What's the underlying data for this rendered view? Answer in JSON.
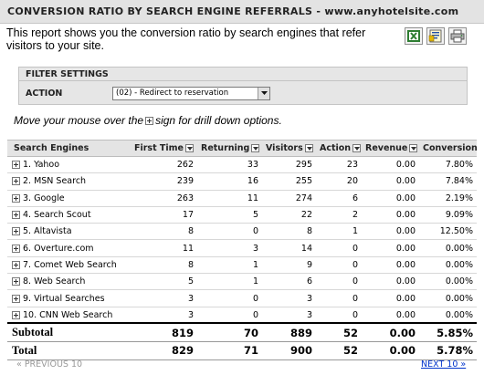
{
  "header": {
    "title": "CONVERSION RATIO BY SEARCH ENGINE REFERRALS - www.anyhotelsite.com"
  },
  "description": "This report shows you the conversion ratio by search engines that refer visitors to your site.",
  "export_icons": [
    "excel-icon",
    "word-icon",
    "print-icon"
  ],
  "filter": {
    "heading": "FILTER SETTINGS",
    "action_label": "ACTION",
    "action_value": "(02) - Redirect to reservation"
  },
  "hint": {
    "before": "Move your mouse over the",
    "after": "sign for drill down options."
  },
  "table": {
    "columns": [
      "Search Engines",
      "First Time",
      "Returning",
      "Visitors",
      "Action",
      "Revenue",
      "Conversion"
    ],
    "rows": [
      [
        "1. Yahoo",
        "262",
        "33",
        "295",
        "23",
        "0.00",
        "7.80%"
      ],
      [
        "2. MSN Search",
        "239",
        "16",
        "255",
        "20",
        "0.00",
        "7.84%"
      ],
      [
        "3. Google",
        "263",
        "11",
        "274",
        "6",
        "0.00",
        "2.19%"
      ],
      [
        "4. Search Scout",
        "17",
        "5",
        "22",
        "2",
        "0.00",
        "9.09%"
      ],
      [
        "5. Altavista",
        "8",
        "0",
        "8",
        "1",
        "0.00",
        "12.50%"
      ],
      [
        "6. Overture.com",
        "11",
        "3",
        "14",
        "0",
        "0.00",
        "0.00%"
      ],
      [
        "7. Comet Web Search",
        "8",
        "1",
        "9",
        "0",
        "0.00",
        "0.00%"
      ],
      [
        "8. Web Search",
        "5",
        "1",
        "6",
        "0",
        "0.00",
        "0.00%"
      ],
      [
        "9. Virtual Searches",
        "3",
        "0",
        "3",
        "0",
        "0.00",
        "0.00%"
      ],
      [
        "10. CNN Web Search",
        "3",
        "0",
        "3",
        "0",
        "0.00",
        "0.00%"
      ]
    ],
    "subtotal": [
      "Subtotal",
      "819",
      "70",
      "889",
      "52",
      "0.00",
      "5.85%"
    ],
    "total": [
      "Total",
      "829",
      "71",
      "900",
      "52",
      "0.00",
      "5.78%"
    ]
  },
  "pager": {
    "prev": "« PREVIOUS 10",
    "next": "NEXT 10 »"
  }
}
